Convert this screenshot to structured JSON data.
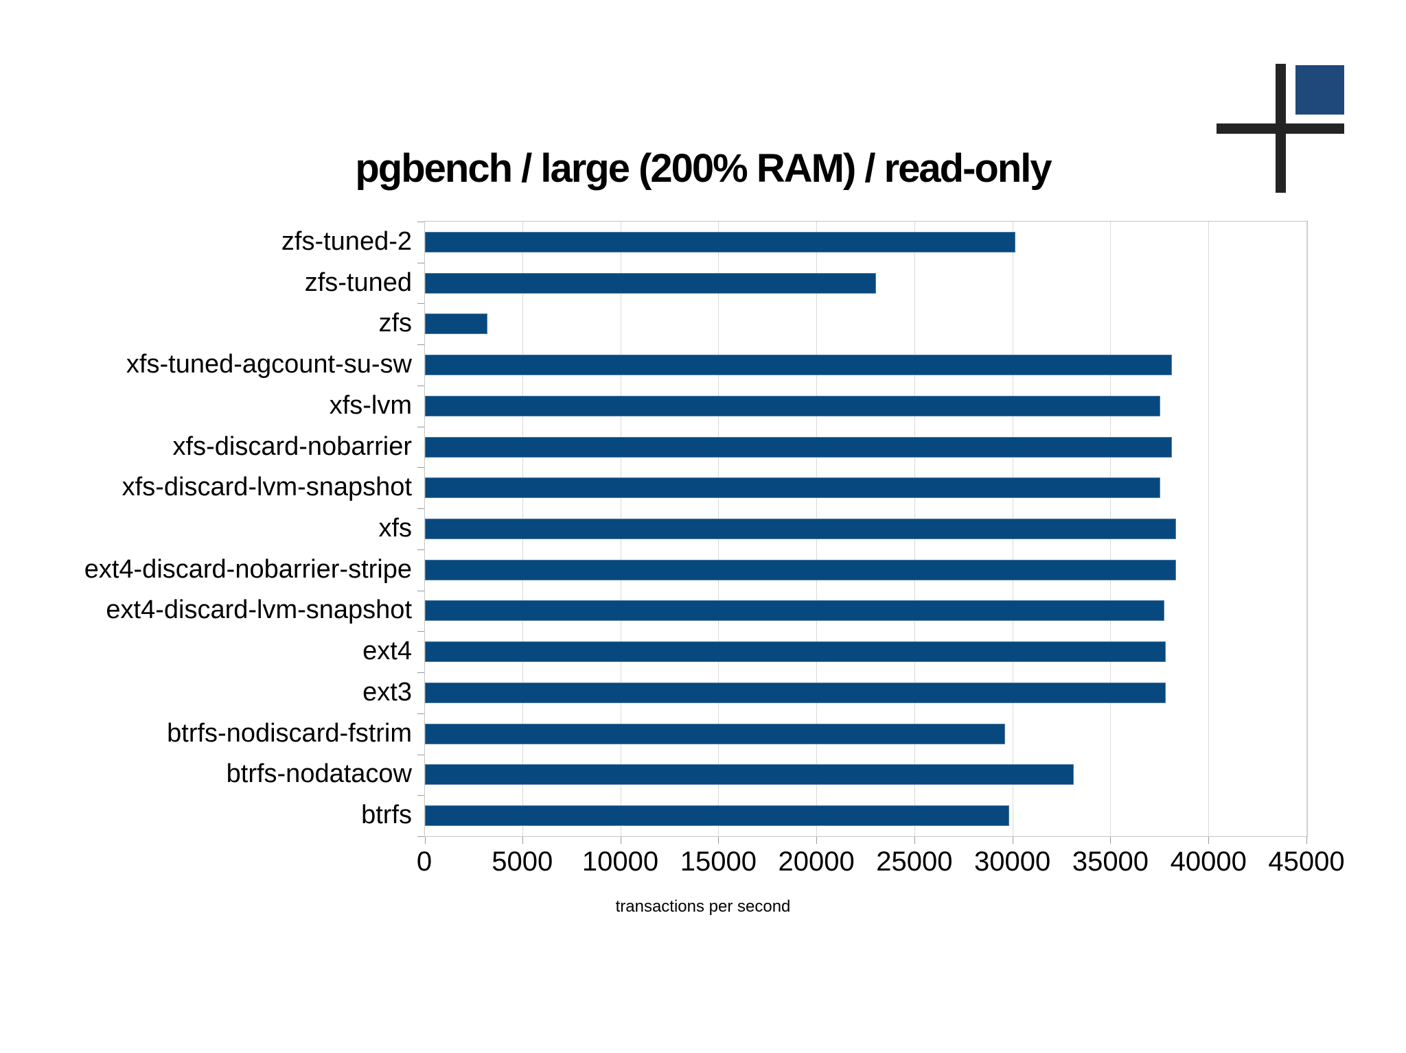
{
  "title": "pgbench / large (200% RAM) / read-only",
  "logo": {
    "name": "cross-and-square-logo",
    "cross_color": "#242424",
    "square_color": "#20497b"
  },
  "colors": {
    "bar_fill": "#07497e",
    "bar_border": "#517aa4",
    "gridline": "#d9d9d9",
    "plot_border": "#c6c6c6",
    "tick": "#989898",
    "text": "#000000",
    "background": "#ffffff"
  },
  "chart_data": {
    "type": "bar",
    "orientation": "horizontal",
    "title": "pgbench / large (200% RAM) / read-only",
    "xlabel": "transactions per second",
    "ylabel": "",
    "xlim": [
      0,
      45000
    ],
    "xticks": [
      0,
      5000,
      10000,
      15000,
      20000,
      25000,
      30000,
      35000,
      40000,
      45000
    ],
    "grid": "vertical gridlines at each x tick, light gray",
    "legend": "none",
    "categories": [
      "zfs-tuned-2",
      "zfs-tuned",
      "zfs",
      "xfs-tuned-agcount-su-sw",
      "xfs-lvm",
      "xfs-discard-nobarrier",
      "xfs-discard-lvm-snapshot",
      "xfs",
      "ext4-discard-nobarrier-stripe",
      "ext4-discard-lvm-snapshot",
      "ext4",
      "ext3",
      "btrfs-nodiscard-fstrim",
      "btrfs-nodatacow",
      "btrfs"
    ],
    "values": [
      30100,
      23000,
      3200,
      38100,
      37500,
      38100,
      37500,
      38300,
      38300,
      37700,
      37800,
      37800,
      29600,
      33100,
      29800
    ]
  }
}
